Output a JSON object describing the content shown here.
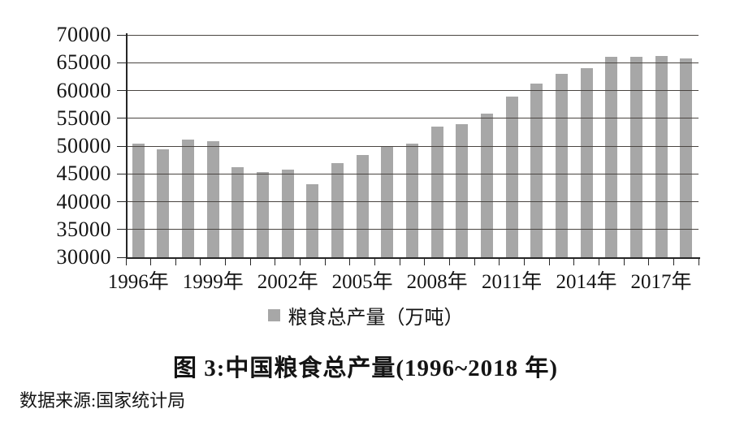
{
  "figure": {
    "title": "图 3:中国粮食总产量(1996~2018 年)",
    "source": "数据来源:国家统计局"
  },
  "chart_data": {
    "type": "bar",
    "title": "图 3:中国粮食总产量(1996~2018 年)",
    "legend_label": "粮食总产量（万吨）",
    "legend_position": "bottom",
    "unit": "万吨",
    "categories": [
      "1996年",
      "1997年",
      "1998年",
      "1999年",
      "2000年",
      "2001年",
      "2002年",
      "2003年",
      "2004年",
      "2005年",
      "2006年",
      "2007年",
      "2008年",
      "2009年",
      "2010年",
      "2011年",
      "2012年",
      "2013年",
      "2014年",
      "2015年",
      "2016年",
      "2017年",
      "2018年"
    ],
    "values": [
      50454,
      49417,
      51230,
      50839,
      46218,
      45264,
      45706,
      43070,
      46947,
      48402,
      49804,
      50414,
      53434,
      53941,
      55911,
      58849,
      61223,
      63048,
      63965,
      66060,
      66044,
      66161,
      65789
    ],
    "ylim": [
      30000,
      70000
    ],
    "yticks": [
      30000,
      35000,
      40000,
      45000,
      50000,
      55000,
      60000,
      65000,
      70000
    ],
    "xtick_labels_shown": [
      "1996年",
      "1999年",
      "2002年",
      "2005年",
      "2008年",
      "2011年",
      "2014年",
      "2017年"
    ],
    "xtick_label_interval": 3,
    "grid": true,
    "gridlines_over_bars": true,
    "colors": {
      "bar": "#a7a7a7",
      "grid": "#4a4541",
      "axis": "#262626",
      "text": "#141414",
      "background": "#ffffff"
    }
  }
}
